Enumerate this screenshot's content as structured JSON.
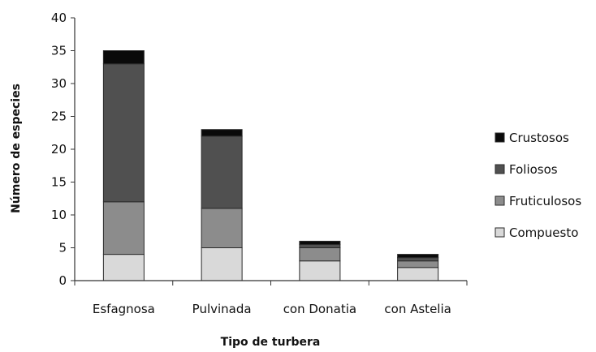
{
  "chart_data": {
    "type": "bar",
    "stacked": true,
    "xlabel": "Tipo de turbera",
    "ylabel": "Número de especies",
    "ylim": [
      0,
      40
    ],
    "yticks": [
      0,
      5,
      10,
      15,
      20,
      25,
      30,
      35,
      40
    ],
    "categories": [
      "Esfagnosa",
      "Pulvinada",
      "con Donatia",
      "con Astelia"
    ],
    "series": [
      {
        "name": "Compuesto",
        "color": "#d9d9d9",
        "values": [
          4,
          5,
          3,
          2
        ]
      },
      {
        "name": "Fruticulosos",
        "color": "#8c8c8c",
        "values": [
          8,
          6,
          2,
          1
        ]
      },
      {
        "name": "Foliosos",
        "color": "#505050",
        "values": [
          21,
          11,
          0.5,
          0.5
        ]
      },
      {
        "name": "Crustosos",
        "color": "#0a0a0a",
        "values": [
          2,
          1,
          0.5,
          0.5
        ]
      }
    ],
    "legend_order": [
      "Crustosos",
      "Foliosos",
      "Fruticulosos",
      "Compuesto"
    ],
    "legend_position": "right",
    "grid": false
  }
}
